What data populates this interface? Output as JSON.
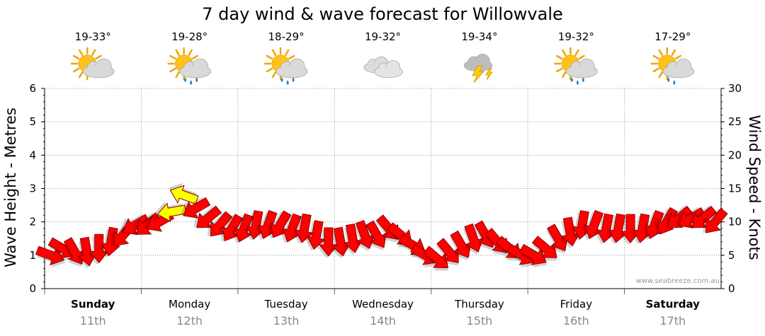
{
  "chart_data": {
    "type": "line",
    "title": "7 day wind & wave forecast for Willowvale",
    "y_left": {
      "label": "Wave Height - Metres",
      "range": [
        0,
        6
      ],
      "ticks": [
        "0",
        "1",
        "2",
        "3",
        "4",
        "5",
        "6"
      ]
    },
    "y_right": {
      "label": "Wind Speed - Knots",
      "range": [
        0,
        30
      ],
      "ticks": [
        "0",
        "5",
        "10",
        "15",
        "20",
        "25",
        "30"
      ]
    },
    "grid": true,
    "watermark": "www.seabreeze.com.au",
    "days": [
      {
        "name": "Sunday",
        "date": "11th",
        "bold": true,
        "temp": "19-33°",
        "icon": "sun-cloud-icon"
      },
      {
        "name": "Monday",
        "date": "12th",
        "bold": false,
        "temp": "19-28°",
        "icon": "sun-cloud-rain-icon"
      },
      {
        "name": "Tuesday",
        "date": "13th",
        "bold": false,
        "temp": "18-29°",
        "icon": "sun-cloud-rain-icon"
      },
      {
        "name": "Wednesday",
        "date": "14th",
        "bold": false,
        "temp": "19-32°",
        "icon": "cloud-icon"
      },
      {
        "name": "Thursday",
        "date": "15th",
        "bold": false,
        "temp": "19-34°",
        "icon": "storm-icon"
      },
      {
        "name": "Friday",
        "date": "16th",
        "bold": false,
        "temp": "19-32°",
        "icon": "sun-cloud-rain-icon"
      },
      {
        "name": "Saturday",
        "date": "17th",
        "bold": true,
        "temp": "17-29°",
        "icon": "sun-cloud-light-rain-icon"
      }
    ],
    "series": [
      {
        "name": "Wind Speed",
        "units": "knots",
        "x_days": [
          0.0,
          0.125,
          0.25,
          0.375,
          0.5,
          0.625,
          0.75,
          0.875,
          1.0,
          1.125,
          1.25,
          1.375,
          1.5,
          1.625,
          1.75,
          1.875,
          2.0,
          2.125,
          2.25,
          2.375,
          2.5,
          2.625,
          2.75,
          2.875,
          3.0,
          3.125,
          3.25,
          3.375,
          3.5,
          3.625,
          3.75,
          3.875,
          4.0,
          4.125,
          4.25,
          4.375,
          4.5,
          4.625,
          4.75,
          4.875,
          5.0,
          5.125,
          5.25,
          5.375,
          5.5,
          5.625,
          5.75,
          5.875,
          6.0,
          6.125,
          6.25,
          6.375,
          6.5,
          6.625,
          6.75,
          6.875
        ],
        "values": [
          5,
          6,
          5.5,
          5.5,
          6,
          7,
          8,
          9.5,
          9.5,
          10,
          11.5,
          14,
          12,
          10.5,
          9.5,
          9,
          9,
          9.5,
          9.5,
          9.5,
          9,
          9,
          8,
          7,
          7,
          7.5,
          8,
          8,
          9,
          8,
          6.5,
          5,
          4.5,
          5.5,
          6.5,
          7.5,
          8,
          7,
          6,
          5,
          5,
          6,
          7.5,
          8.5,
          9.5,
          9.5,
          9,
          9,
          9,
          9,
          9.5,
          10,
          10.5,
          10.5,
          10.5,
          10
        ],
        "direction_deg": [
          20,
          30,
          60,
          80,
          90,
          100,
          130,
          150,
          140,
          150,
          170,
          200,
          150,
          140,
          130,
          120,
          110,
          100,
          110,
          120,
          110,
          100,
          100,
          90,
          80,
          80,
          70,
          60,
          50,
          40,
          30,
          30,
          40,
          50,
          60,
          70,
          60,
          50,
          40,
          30,
          30,
          40,
          60,
          80,
          100,
          110,
          100,
          100,
          90,
          100,
          110,
          120,
          140,
          150,
          140,
          130
        ],
        "highlight": [
          false,
          false,
          false,
          false,
          false,
          false,
          false,
          false,
          false,
          false,
          true,
          true,
          false,
          false,
          false,
          false,
          false,
          false,
          false,
          false,
          false,
          false,
          false,
          false,
          false,
          false,
          false,
          false,
          false,
          false,
          false,
          false,
          false,
          false,
          false,
          false,
          false,
          false,
          false,
          false,
          false,
          false,
          false,
          false,
          false,
          false,
          false,
          false,
          false,
          false,
          false,
          false,
          false,
          false,
          false,
          false
        ]
      }
    ],
    "colors": {
      "arrow": "#ff0000",
      "arrow_highlight": "#ffff00",
      "grid": "#999999",
      "date": "#888888"
    }
  }
}
